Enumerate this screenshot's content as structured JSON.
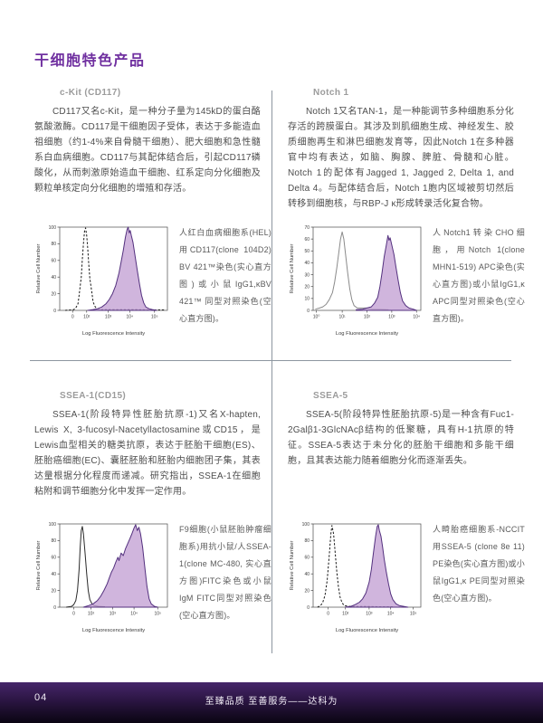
{
  "page": {
    "title": "干细胞特色产品",
    "page_number": "04",
    "footer_slogan": "至臻品质 至善服务——达科为"
  },
  "colors": {
    "accent": "#7030a0",
    "divider": "#8d96a0",
    "histogram_fill": "#c4a3d4",
    "histogram_stroke": "#53307e",
    "footer_top": "#46266a",
    "footer_bottom": "#0a0512"
  },
  "panels": [
    {
      "heading": "c-Kit (CD117)",
      "paragraph": "CD117又名c-Kit，是一种分子量为145kD的蛋白酪氨酸激酶。CD117是干细胞因子受体，表达于多能造血祖细胞（约1-4%来自骨髓干细胞）、肥大细胞和急性髓系白血病细胞。CD117与其配体结合后，引起CD117磷酸化，从而刺激原始造血干细胞、红系定向分化细胞及颗粒单核定向分化细胞的增殖和存活。",
      "caption": "人红白血病细胞系(HEL)用CD117(clone 104D2) BV 421™染色(实心直方图)或小鼠IgG1,κBV 421™ 同型对照染色(空心直方图)。"
    },
    {
      "heading": "Notch 1",
      "paragraph": "Notch 1又名TAN-1，是一种能调节多种细胞系分化存活的跨膜蛋白。其涉及到肌细胞生成、神经发生、胶质细胞再生和淋巴细胞发育等，因此Notch 1在多种器官中均有表达，如脑、胸腺、脾脏、骨髓和心脏。Notch 1的配体有Jagged 1, Jagged 2, Delta 1, and Delta 4。与配体结合后，Notch 1胞内区域被剪切然后转移到细胞核，与RBP-J κ形成转录活化复合物。",
      "caption": "人Notch1转染CHO细胞，用Notch 1(clone MHN1-519) APC染色(实心直方图)或小鼠IgG1,κ APC同型对照染色(空心直方图)。"
    },
    {
      "heading": "SSEA-1(CD15)",
      "paragraph": "SSEA-1(阶段特异性胚胎抗原-1)又名X-hapten, Lewis X, 3-fucosyl-Nacetyllactosamine或CD15，是Lewis血型相关的糖类抗原，表达于胚胎干细胞(ES)、胚胎癌细胞(EC)、囊胚胚胎和胚胎内细胞团子集，其表达量根据分化程度而递减。研究指出，SSEA-1在细胞粘附和调节细胞分化中发挥一定作用。",
      "caption": "F9细胞(小鼠胚胎肿瘤细胞系)用抗小鼠/人SSEA-1(clone MC-480, 实心直方图)FITC染色或小鼠IgM FITC同型对照染色(空心直方图)。"
    },
    {
      "heading": "SSEA-5",
      "paragraph": "SSEA-5(阶段特异性胚胎抗原-5)是一种含有Fuc1-2Galβ1-3GlcNAcβ结构的低聚糖，具有H-1抗原的特征。SSEA-5表达于未分化的胚胎干细胞和多能干细胞，且其表达能力随着细胞分化而逐渐丢失。",
      "caption": "人畸胎癌细胞系-NCCIT用SSEA-5 (clone 8e 11) PE染色(实心直方图)或小鼠IgG1,κ PE同型对照染色(空心直方图)。"
    }
  ],
  "chart_data": [
    {
      "type": "area",
      "panel": "c-Kit (CD117)",
      "xlabel": "Log Fluorescence Intensity",
      "ylabel": "Relative Cell Number",
      "ymax": 100,
      "yticks": [
        0,
        20,
        40,
        60,
        80,
        100
      ],
      "xticks": [
        {
          "pos": 0.12,
          "label": "0"
        },
        {
          "pos": 0.25,
          "label": "10²"
        },
        {
          "pos": 0.45,
          "label": "10³"
        },
        {
          "pos": 0.65,
          "label": "10⁴"
        },
        {
          "pos": 0.88,
          "label": "10⁵"
        }
      ],
      "series": [
        {
          "name": "isotype-control",
          "style": "dashed",
          "color": "#1a1a1a",
          "points": [
            [
              0.05,
              0
            ],
            [
              0.1,
              0.5
            ],
            [
              0.13,
              1
            ],
            [
              0.15,
              3
            ],
            [
              0.17,
              8
            ],
            [
              0.18,
              18
            ],
            [
              0.2,
              40
            ],
            [
              0.21,
              62
            ],
            [
              0.22,
              80
            ],
            [
              0.23,
              95
            ],
            [
              0.24,
              99
            ],
            [
              0.25,
              90
            ],
            [
              0.26,
              75
            ],
            [
              0.27,
              55
            ],
            [
              0.28,
              38
            ],
            [
              0.3,
              20
            ],
            [
              0.31,
              10
            ],
            [
              0.33,
              4
            ],
            [
              0.35,
              2
            ],
            [
              0.38,
              1
            ],
            [
              0.45,
              1
            ],
            [
              0.55,
              1
            ],
            [
              0.7,
              1
            ],
            [
              0.85,
              0.5
            ],
            [
              0.97,
              0.5
            ]
          ]
        },
        {
          "name": "CD117-BV421-stained",
          "style": "filled",
          "fill": "#c4a3d4",
          "color": "#53307e",
          "points": [
            [
              0.26,
              0
            ],
            [
              0.31,
              1
            ],
            [
              0.35,
              2
            ],
            [
              0.39,
              4
            ],
            [
              0.43,
              8
            ],
            [
              0.46,
              13
            ],
            [
              0.49,
              20
            ],
            [
              0.52,
              30
            ],
            [
              0.55,
              45
            ],
            [
              0.57,
              58
            ],
            [
              0.59,
              72
            ],
            [
              0.61,
              88
            ],
            [
              0.625,
              97
            ],
            [
              0.635,
              100
            ],
            [
              0.645,
              93
            ],
            [
              0.655,
              96
            ],
            [
              0.665,
              90
            ],
            [
              0.68,
              82
            ],
            [
              0.7,
              65
            ],
            [
              0.72,
              48
            ],
            [
              0.74,
              32
            ],
            [
              0.76,
              18
            ],
            [
              0.78,
              9
            ],
            [
              0.8,
              4
            ],
            [
              0.83,
              2
            ],
            [
              0.86,
              1
            ],
            [
              0.9,
              0
            ]
          ]
        }
      ]
    },
    {
      "type": "area",
      "panel": "Notch 1",
      "xlabel": "Log Fluorescence Intensity",
      "ylabel": "Relative Cell Number",
      "ymax": 70,
      "yticks": [
        0,
        10,
        20,
        30,
        40,
        50,
        60,
        70
      ],
      "xticks": [
        {
          "pos": 0.03,
          "label": "10⁰"
        },
        {
          "pos": 0.27,
          "label": "10¹"
        },
        {
          "pos": 0.5,
          "label": "10²"
        },
        {
          "pos": 0.73,
          "label": "10³"
        },
        {
          "pos": 0.96,
          "label": "10⁴"
        }
      ],
      "series": [
        {
          "name": "isotype-control",
          "style": "solid",
          "color": "#8a8a8a",
          "points": [
            [
              0.02,
              1
            ],
            [
              0.06,
              2
            ],
            [
              0.09,
              3
            ],
            [
              0.12,
              5
            ],
            [
              0.15,
              9
            ],
            [
              0.18,
              15
            ],
            [
              0.2,
              24
            ],
            [
              0.22,
              36
            ],
            [
              0.24,
              50
            ],
            [
              0.255,
              60
            ],
            [
              0.27,
              66
            ],
            [
              0.285,
              60
            ],
            [
              0.3,
              48
            ],
            [
              0.32,
              32
            ],
            [
              0.34,
              18
            ],
            [
              0.36,
              9
            ],
            [
              0.38,
              4
            ],
            [
              0.41,
              2
            ],
            [
              0.45,
              2
            ],
            [
              0.5,
              2
            ],
            [
              0.55,
              1
            ],
            [
              0.62,
              1
            ],
            [
              0.7,
              0.5
            ]
          ]
        },
        {
          "name": "Notch1-APC-stained",
          "style": "filled",
          "fill": "#c4a3d4",
          "color": "#53307e",
          "points": [
            [
              0.4,
              0.5
            ],
            [
              0.46,
              1
            ],
            [
              0.5,
              2
            ],
            [
              0.54,
              3
            ],
            [
              0.57,
              6
            ],
            [
              0.6,
              11
            ],
            [
              0.62,
              20
            ],
            [
              0.64,
              32
            ],
            [
              0.66,
              45
            ],
            [
              0.68,
              55
            ],
            [
              0.695,
              63
            ],
            [
              0.705,
              59
            ],
            [
              0.715,
              61
            ],
            [
              0.73,
              55
            ],
            [
              0.75,
              47
            ],
            [
              0.77,
              36
            ],
            [
              0.79,
              25
            ],
            [
              0.81,
              15
            ],
            [
              0.83,
              8
            ],
            [
              0.86,
              4
            ],
            [
              0.89,
              2
            ],
            [
              0.93,
              1
            ],
            [
              0.96,
              0
            ]
          ]
        }
      ]
    },
    {
      "type": "area",
      "panel": "SSEA-1(CD15)",
      "xlabel": "Log Fluorescence Intensity",
      "ylabel": "Relative Cell Number",
      "ymax": 100,
      "yticks": [
        0,
        20,
        40,
        60,
        80,
        100
      ],
      "xticks": [
        {
          "pos": 0.13,
          "label": "0"
        },
        {
          "pos": 0.29,
          "label": "10²"
        },
        {
          "pos": 0.49,
          "label": "10³"
        },
        {
          "pos": 0.69,
          "label": "10⁴"
        },
        {
          "pos": 0.91,
          "label": "10⁵"
        }
      ],
      "series": [
        {
          "name": "isotype-control",
          "style": "solid",
          "color": "#2a2a2a",
          "points": [
            [
              0.06,
              0
            ],
            [
              0.11,
              1
            ],
            [
              0.13,
              3
            ],
            [
              0.15,
              8
            ],
            [
              0.165,
              20
            ],
            [
              0.18,
              45
            ],
            [
              0.19,
              72
            ],
            [
              0.2,
              92
            ],
            [
              0.21,
              97
            ],
            [
              0.22,
              88
            ],
            [
              0.235,
              65
            ],
            [
              0.25,
              40
            ],
            [
              0.265,
              20
            ],
            [
              0.28,
              9
            ],
            [
              0.3,
              4
            ],
            [
              0.32,
              2
            ],
            [
              0.36,
              1
            ],
            [
              0.42,
              0.5
            ]
          ]
        },
        {
          "name": "SSEA1-FITC-stained",
          "style": "filled",
          "fill": "#c4a3d4",
          "color": "#53307e",
          "points": [
            [
              0.22,
              0
            ],
            [
              0.27,
              2
            ],
            [
              0.31,
              4
            ],
            [
              0.35,
              8
            ],
            [
              0.38,
              13
            ],
            [
              0.41,
              20
            ],
            [
              0.44,
              28
            ],
            [
              0.46,
              35
            ],
            [
              0.48,
              42
            ],
            [
              0.5,
              47
            ],
            [
              0.52,
              54
            ],
            [
              0.54,
              60
            ],
            [
              0.55,
              56
            ],
            [
              0.57,
              65
            ],
            [
              0.59,
              62
            ],
            [
              0.61,
              70
            ],
            [
              0.63,
              76
            ],
            [
              0.65,
              82
            ],
            [
              0.67,
              88
            ],
            [
              0.69,
              95
            ],
            [
              0.705,
              99
            ],
            [
              0.72,
              92
            ],
            [
              0.735,
              96
            ],
            [
              0.75,
              88
            ],
            [
              0.77,
              72
            ],
            [
              0.79,
              48
            ],
            [
              0.81,
              25
            ],
            [
              0.83,
              10
            ],
            [
              0.85,
              4
            ],
            [
              0.88,
              1
            ],
            [
              0.91,
              0
            ]
          ]
        }
      ]
    },
    {
      "type": "area",
      "panel": "SSEA-5",
      "xlabel": "Log Fluorescence Intensity",
      "ylabel": "Relative Cell Number",
      "ymax": 100,
      "yticks": [
        0,
        20,
        40,
        60,
        80,
        100
      ],
      "xticks": [
        {
          "pos": 0.14,
          "label": "0"
        },
        {
          "pos": 0.3,
          "label": "10²"
        },
        {
          "pos": 0.52,
          "label": "10³"
        },
        {
          "pos": 0.72,
          "label": "10⁴"
        },
        {
          "pos": 0.93,
          "label": "10⁵"
        }
      ],
      "series": [
        {
          "name": "isotype-control",
          "style": "dashed",
          "color": "#1a1a1a",
          "points": [
            [
              0.04,
              0
            ],
            [
              0.07,
              2
            ],
            [
              0.09,
              6
            ],
            [
              0.11,
              14
            ],
            [
              0.13,
              32
            ],
            [
              0.15,
              62
            ],
            [
              0.165,
              88
            ],
            [
              0.175,
              98
            ],
            [
              0.19,
              88
            ],
            [
              0.205,
              65
            ],
            [
              0.22,
              42
            ],
            [
              0.235,
              24
            ],
            [
              0.25,
              12
            ],
            [
              0.27,
              5
            ],
            [
              0.29,
              2
            ],
            [
              0.33,
              1
            ],
            [
              0.4,
              1
            ],
            [
              0.5,
              1
            ],
            [
              0.6,
              0.5
            ],
            [
              0.75,
              0.5
            ]
          ]
        },
        {
          "name": "SSEA5-PE-stained",
          "style": "filled",
          "fill": "#c4a3d4",
          "color": "#53307e",
          "points": [
            [
              0.3,
              0
            ],
            [
              0.35,
              1
            ],
            [
              0.39,
              3
            ],
            [
              0.43,
              6
            ],
            [
              0.46,
              10
            ],
            [
              0.49,
              17
            ],
            [
              0.52,
              30
            ],
            [
              0.54,
              45
            ],
            [
              0.56,
              65
            ],
            [
              0.58,
              85
            ],
            [
              0.595,
              97
            ],
            [
              0.605,
              99
            ],
            [
              0.615,
              92
            ],
            [
              0.63,
              85
            ],
            [
              0.645,
              72
            ],
            [
              0.66,
              58
            ],
            [
              0.68,
              42
            ],
            [
              0.7,
              28
            ],
            [
              0.72,
              16
            ],
            [
              0.74,
              9
            ],
            [
              0.77,
              4
            ],
            [
              0.8,
              2
            ],
            [
              0.84,
              1
            ],
            [
              0.88,
              0
            ]
          ]
        }
      ]
    }
  ]
}
